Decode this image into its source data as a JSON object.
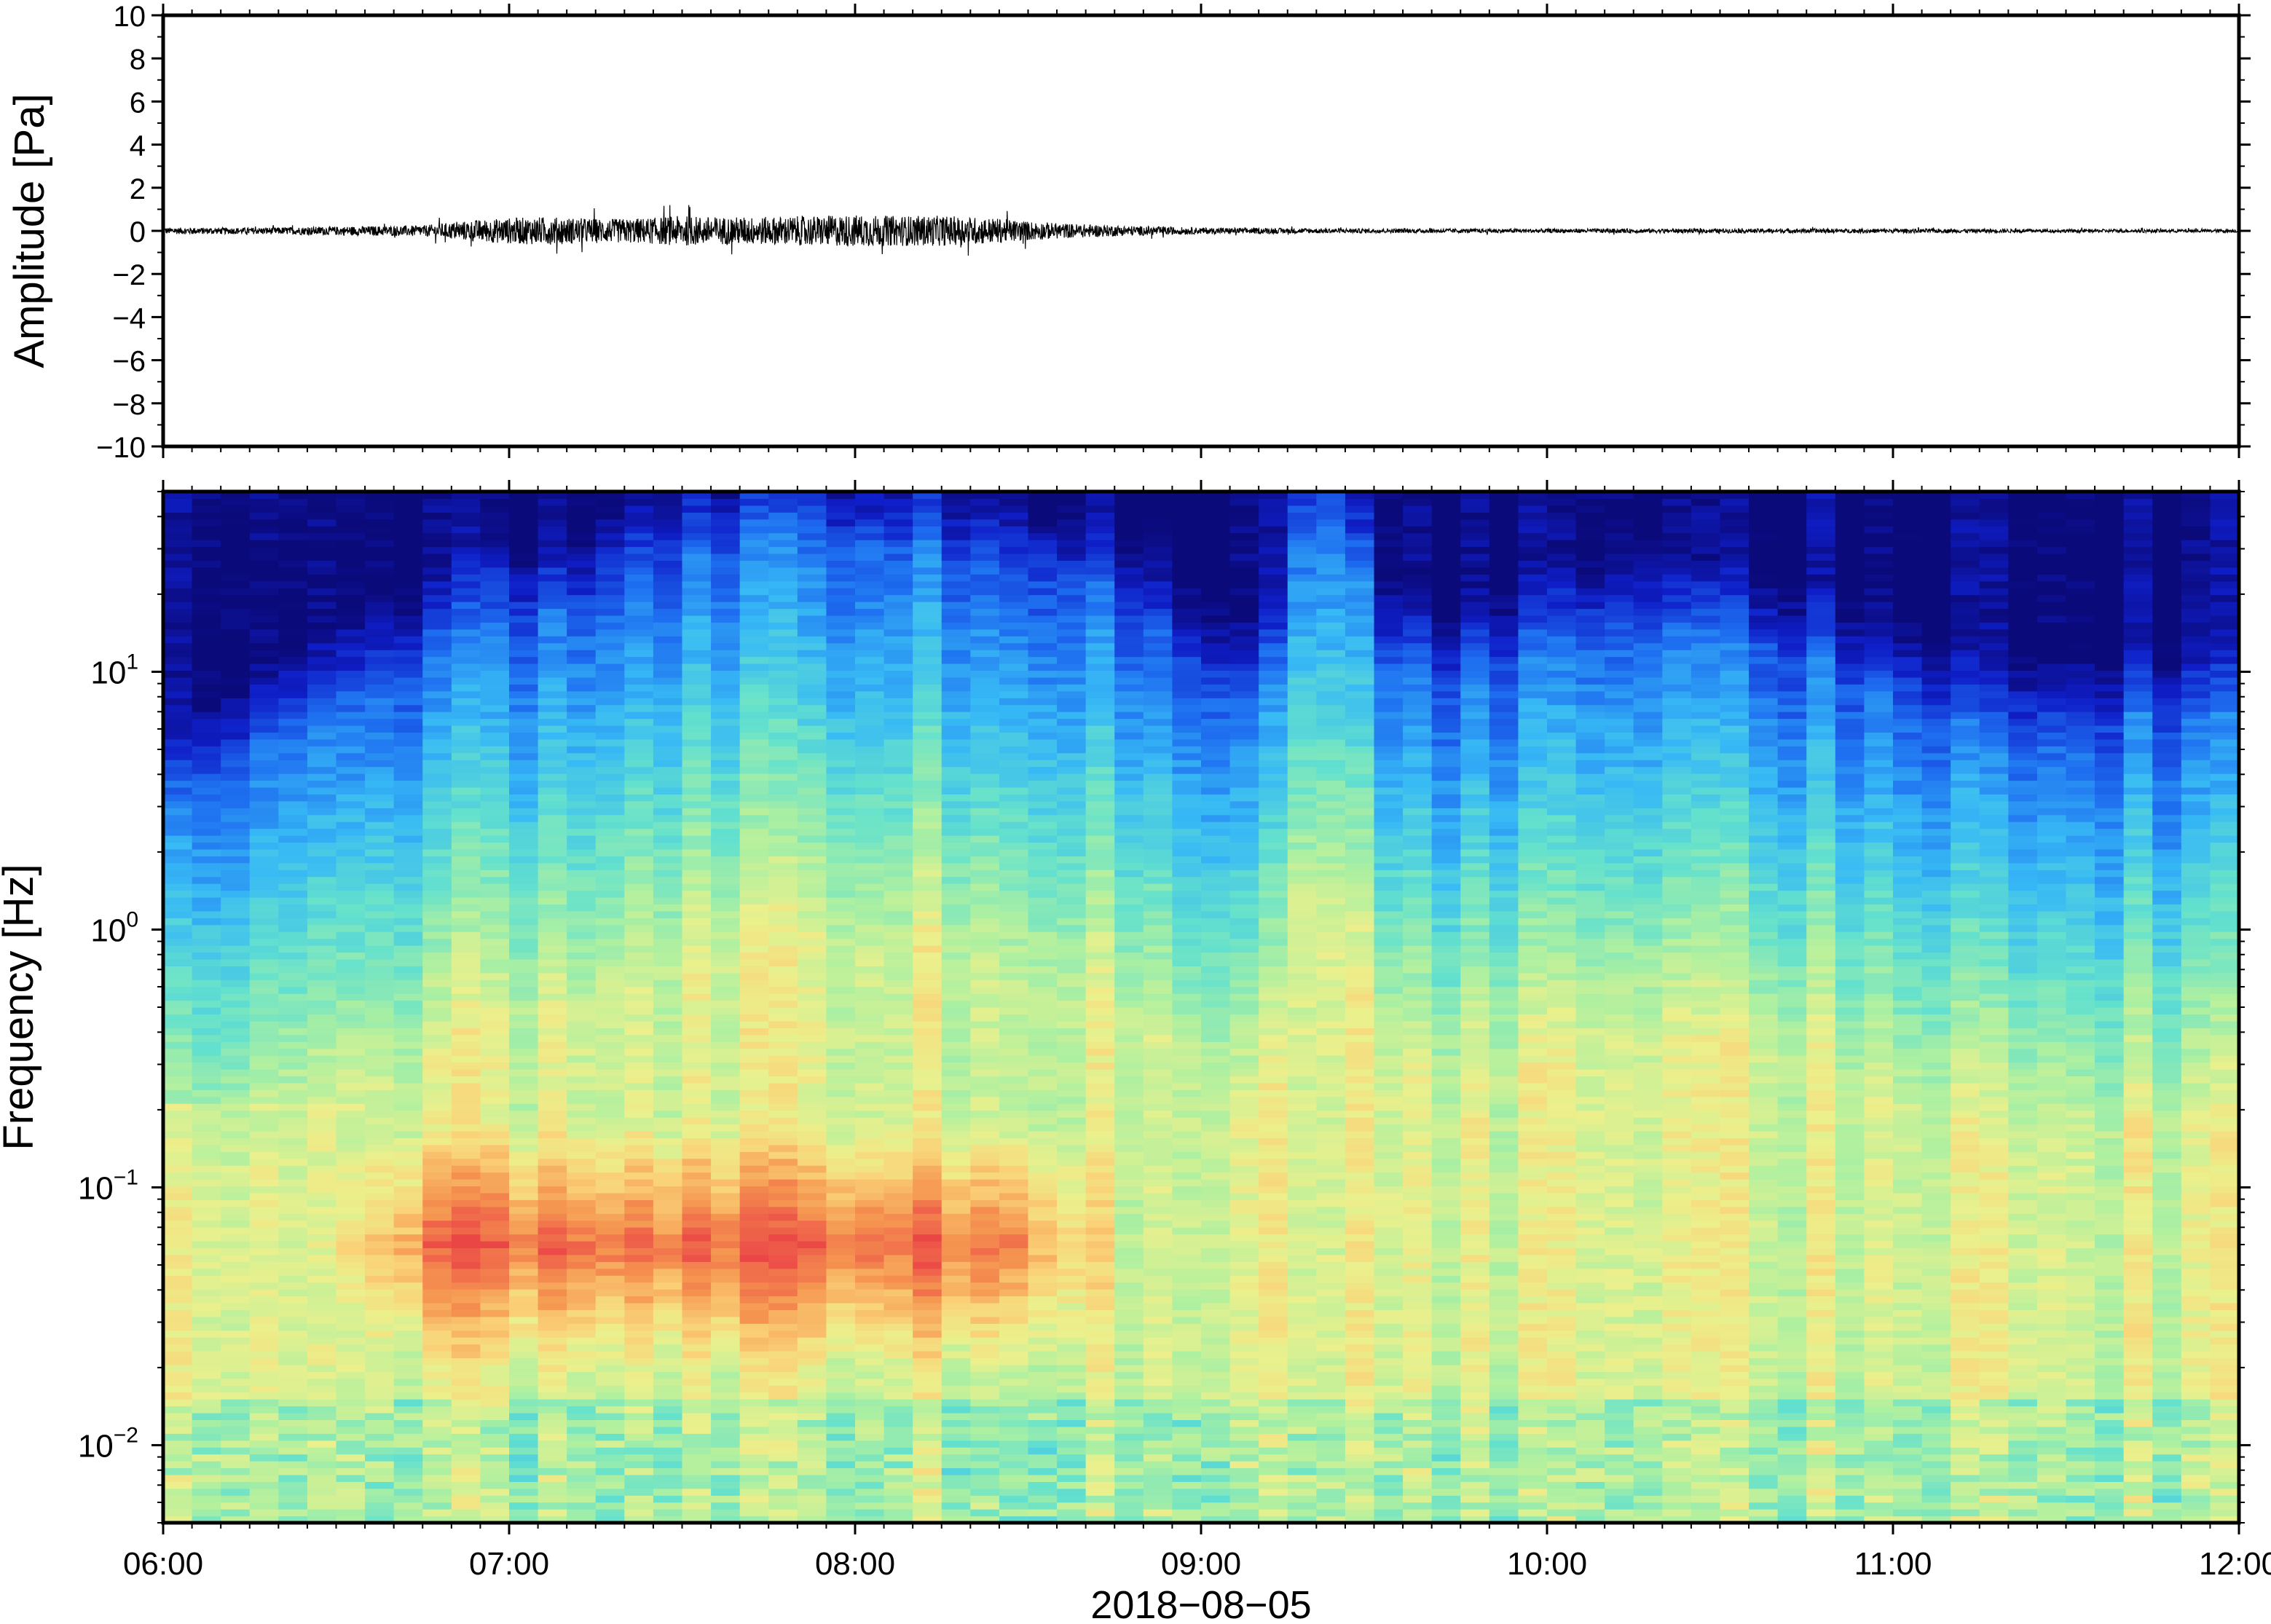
{
  "chart_data": [
    {
      "type": "line",
      "ylabel": "Amplitude [Pa]",
      "ylim": [
        -10,
        10
      ],
      "yticks": [
        "10",
        "8",
        "6",
        "4",
        "2",
        "0",
        "−2",
        "−4",
        "−6",
        "−8",
        "−10"
      ],
      "ytick_values": [
        10,
        8,
        6,
        4,
        2,
        0,
        -2,
        -4,
        -6,
        -8,
        -10
      ],
      "xlim": [
        "06:00",
        "12:00"
      ],
      "series": [
        {
          "color": "#000000",
          "time_hours": [
            6.0,
            6.25,
            6.5,
            6.75,
            6.9,
            7.0,
            7.1,
            7.2,
            7.3,
            7.4,
            7.5,
            7.6,
            7.75,
            7.9,
            8.0,
            8.1,
            8.25,
            8.4,
            8.5,
            8.6,
            8.75,
            9.0,
            9.5,
            10.0,
            10.5,
            11.0,
            11.5,
            12.0
          ],
          "envelope_pa": [
            0.15,
            0.15,
            0.2,
            0.25,
            0.5,
            0.6,
            0.65,
            0.6,
            0.55,
            0.6,
            0.7,
            0.65,
            0.65,
            0.7,
            0.75,
            0.7,
            0.7,
            0.6,
            0.45,
            0.35,
            0.25,
            0.15,
            0.1,
            0.1,
            0.1,
            0.1,
            0.08,
            0.08
          ]
        }
      ]
    },
    {
      "type": "heatmap",
      "xlabel": "2018−08−05",
      "ylabel": "Frequency [Hz]",
      "y_scale": "log",
      "ylim_hz": [
        0.005,
        50
      ],
      "yticks": [
        {
          "value": 10,
          "base": "10",
          "exp": "1"
        },
        {
          "value": 1,
          "base": "10",
          "exp": "0"
        },
        {
          "value": 0.1,
          "base": "10",
          "exp": "−1"
        },
        {
          "value": 0.01,
          "base": "10",
          "exp": "−2"
        }
      ],
      "xticks": [
        "06:00",
        "07:00",
        "08:00",
        "09:00",
        "10:00",
        "11:00",
        "12:00"
      ],
      "xlim": [
        "06:00",
        "12:00"
      ],
      "colormap": "jet",
      "colors": {
        "low": "#0b0a7a",
        "mid": "#8ee8b0",
        "high": "#f04848"
      },
      "upper_edge_time_hours": [
        6.0,
        6.25,
        6.5,
        6.75,
        7.0,
        7.2,
        7.3,
        7.5,
        7.75,
        8.0,
        8.25,
        8.5,
        8.75,
        9.0,
        9.2,
        9.3,
        9.4,
        9.5,
        9.75,
        10.0,
        10.25,
        10.5,
        10.75,
        11.0,
        11.25,
        11.5,
        11.75,
        12.0
      ],
      "upper_edge_freq_hz": [
        3.0,
        5.0,
        8.0,
        12.0,
        18.0,
        18.0,
        25.0,
        30.0,
        35.0,
        35.0,
        32.0,
        28.0,
        20.0,
        10.0,
        7.0,
        45.0,
        45.0,
        12.0,
        10.0,
        13.0,
        15.0,
        14.0,
        12.0,
        9.0,
        6.0,
        6.0,
        7.0,
        7.0
      ],
      "hot_band_freq_hz": [
        0.03,
        0.12
      ],
      "hot_band_time_hours": [
        6.75,
        8.6
      ]
    }
  ]
}
